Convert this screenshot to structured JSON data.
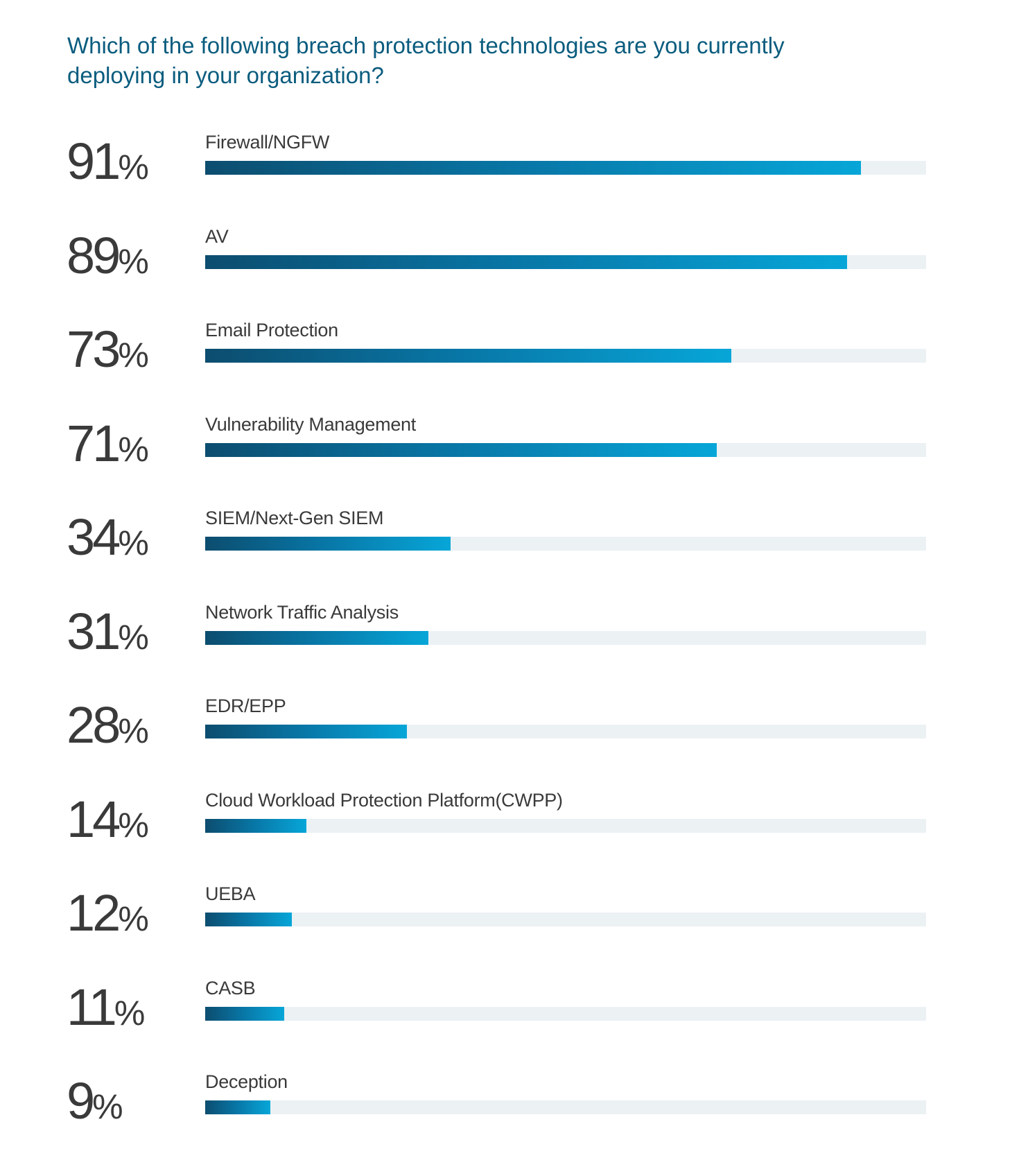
{
  "title": "Which of the following breach protection technologies are you currently deploying in your organization?",
  "colors": {
    "title": "#0a5c7e",
    "text": "#3a3a3a",
    "bar_start": "#0c4d6f",
    "bar_end": "#07a6d8",
    "track": "#ecf1f4"
  },
  "chart_data": {
    "type": "bar",
    "orientation": "horizontal",
    "title": "Which of the following breach protection technologies are you currently deploying in your organization?",
    "xlim": [
      0,
      100
    ],
    "unit": "%",
    "categories": [
      "Firewall/NGFW",
      "AV",
      "Email Protection",
      "Vulnerability Management",
      "SIEM/Next-Gen SIEM",
      "Network Traffic Analysis",
      "EDR/EPP",
      "Cloud Workload Protection Platform(CWPP)",
      "UEBA",
      "CASB",
      "Deception"
    ],
    "values": [
      91,
      89,
      73,
      71,
      34,
      31,
      28,
      14,
      12,
      11,
      9
    ],
    "grid": false,
    "legend": "none"
  }
}
